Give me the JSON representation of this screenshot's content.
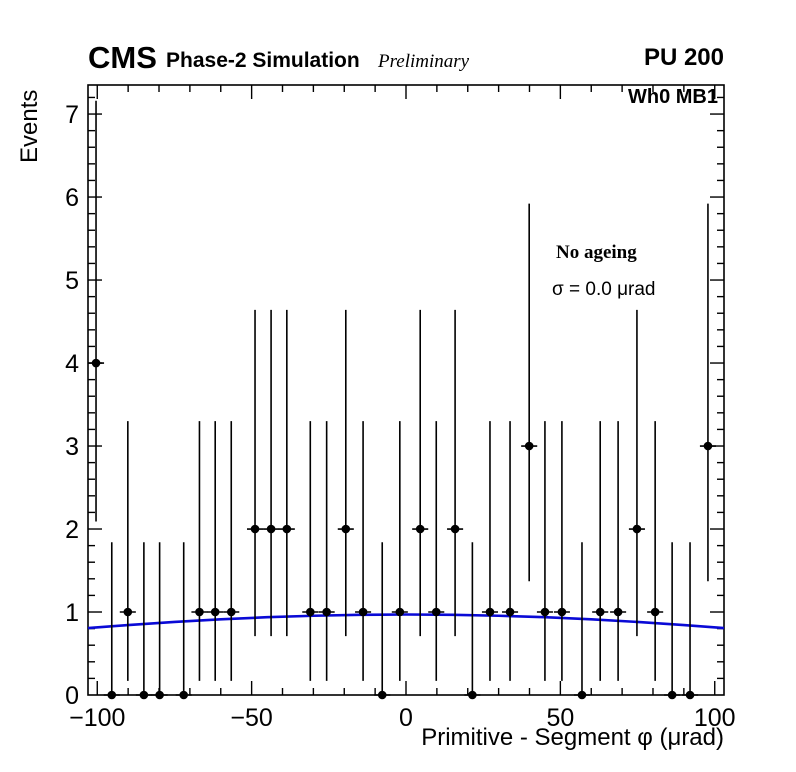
{
  "header": {
    "experiment": "CMS",
    "subtitle": "Phase-2 Simulation",
    "preliminary": "Preliminary",
    "right_label": "PU 200"
  },
  "plot_labels": {
    "region": "Wh0 MB1",
    "legend_line1": "No ageing",
    "legend_line2": "σ = 0.0 μrad"
  },
  "chart_data": {
    "type": "scatter",
    "title": "",
    "xlabel": "Primitive - Segment φ (μrad)",
    "ylabel": "Events",
    "xlim": [
      -103,
      103
    ],
    "ylim": [
      0,
      7.35
    ],
    "grid": false,
    "x_major_ticks": [
      -100,
      -50,
      0,
      50,
      100
    ],
    "x_tick_labels": [
      "−100",
      "−50",
      "0",
      "50",
      "100"
    ],
    "x_minor_step": 10,
    "y_major_ticks": [
      0,
      1,
      2,
      3,
      4,
      5,
      6,
      7
    ],
    "y_tick_labels": [
      "0",
      "1",
      "2",
      "3",
      "4",
      "5",
      "6",
      "7"
    ],
    "y_minor_step": 0.2,
    "x_half_bin": 2.6,
    "marker_color": "#000000",
    "poisson_errors": {
      "0": [
        0,
        1.84
      ],
      "1": [
        0.83,
        2.3
      ],
      "2": [
        1.29,
        2.64
      ],
      "3": [
        1.63,
        2.92
      ],
      "4": [
        1.91,
        3.16
      ]
    },
    "points": [
      [
        -100.4,
        4
      ],
      [
        -95.3,
        0
      ],
      [
        -90.1,
        1
      ],
      [
        -84.9,
        0
      ],
      [
        -79.8,
        0
      ],
      [
        -72.0,
        0
      ],
      [
        -66.9,
        1
      ],
      [
        -61.8,
        1
      ],
      [
        -56.6,
        1
      ],
      [
        -48.9,
        2
      ],
      [
        -43.7,
        2
      ],
      [
        -38.6,
        2
      ],
      [
        -31.0,
        1
      ],
      [
        -25.7,
        1
      ],
      [
        -19.5,
        2
      ],
      [
        -13.9,
        1
      ],
      [
        -7.7,
        0
      ],
      [
        -2.0,
        1
      ],
      [
        4.6,
        2
      ],
      [
        9.8,
        1
      ],
      [
        15.9,
        2
      ],
      [
        21.5,
        0
      ],
      [
        27.2,
        1
      ],
      [
        33.7,
        1
      ],
      [
        39.9,
        3
      ],
      [
        45.0,
        1
      ],
      [
        50.5,
        1
      ],
      [
        57.0,
        0
      ],
      [
        62.9,
        1
      ],
      [
        68.7,
        1
      ],
      [
        74.8,
        2
      ],
      [
        80.7,
        1
      ],
      [
        86.2,
        0
      ],
      [
        92.0,
        0
      ],
      [
        97.8,
        3
      ]
    ],
    "fit_curve": {
      "color": "#0a0ad6",
      "x": [
        -103,
        -90,
        -75,
        -60,
        -45,
        -30,
        -15,
        0,
        15,
        30,
        45,
        60,
        75,
        90,
        103
      ],
      "y": [
        0.806,
        0.843,
        0.88,
        0.912,
        0.937,
        0.955,
        0.966,
        0.97,
        0.966,
        0.955,
        0.937,
        0.912,
        0.88,
        0.843,
        0.806
      ]
    }
  }
}
